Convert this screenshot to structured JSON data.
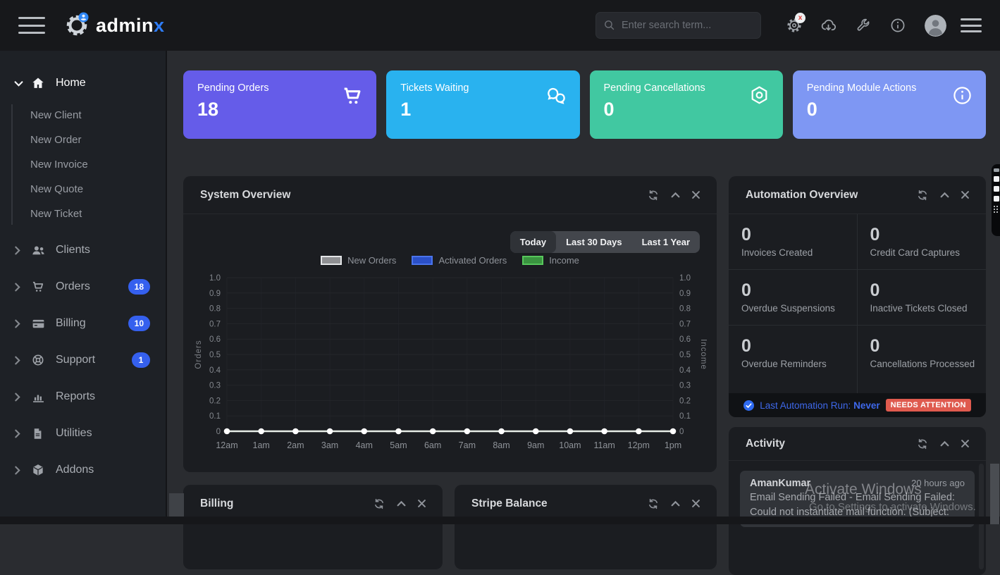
{
  "navbar": {
    "logo": {
      "primary": "admin",
      "accent": "x"
    },
    "search": {
      "placeholder": "Enter search term..."
    },
    "error_badge": "x"
  },
  "sidebar": {
    "home_label": "Home",
    "home_children": [
      "New Client",
      "New Order",
      "New Invoice",
      "New Quote",
      "New Ticket"
    ],
    "items": [
      {
        "label": "Clients",
        "badge": ""
      },
      {
        "label": "Orders",
        "badge": "18"
      },
      {
        "label": "Billing",
        "badge": "10"
      },
      {
        "label": "Support",
        "badge": "1"
      },
      {
        "label": "Reports",
        "badge": ""
      },
      {
        "label": "Utilities",
        "badge": ""
      },
      {
        "label": "Addons",
        "badge": ""
      }
    ]
  },
  "colors": {
    "badge_blue": "#3560ee"
  },
  "stat_cards": [
    {
      "label": "Pending Orders",
      "value": "18",
      "color": "#655ce9"
    },
    {
      "label": "Tickets Waiting",
      "value": "1",
      "color": "#29b2ef"
    },
    {
      "label": "Pending Cancellations",
      "value": "0",
      "color": "#41c8a1"
    },
    {
      "label": "Pending Module Actions",
      "value": "0",
      "color": "#7e97f3"
    }
  ],
  "system_overview": {
    "title": "System Overview",
    "ranges": [
      "Today",
      "Last 30 Days",
      "Last 1 Year"
    ],
    "active_range": "Today",
    "legend": [
      {
        "label": "New Orders",
        "fill": "#8f9093",
        "border": "#e4e6e8"
      },
      {
        "label": "Activated Orders",
        "fill": "#2b50c8",
        "border": "#4a74ec"
      },
      {
        "label": "Income",
        "fill": "#3a9440",
        "border": "#57c75c"
      }
    ],
    "line_color": "#e7ede7",
    "marker_color": "#ffffff"
  },
  "chart_data": {
    "type": "line",
    "title": "System Overview",
    "x": [
      "12am",
      "1am",
      "2am",
      "3am",
      "4am",
      "5am",
      "6am",
      "7am",
      "8am",
      "9am",
      "10am",
      "11am",
      "12pm",
      "1pm"
    ],
    "series": [
      {
        "name": "New Orders",
        "axis": "left",
        "values": [
          0,
          0,
          0,
          0,
          0,
          0,
          0,
          0,
          0,
          0,
          0,
          0,
          0,
          0
        ]
      },
      {
        "name": "Activated Orders",
        "axis": "left",
        "values": [
          0,
          0,
          0,
          0,
          0,
          0,
          0,
          0,
          0,
          0,
          0,
          0,
          0,
          0
        ]
      },
      {
        "name": "Income",
        "axis": "right",
        "values": [
          0,
          0,
          0,
          0,
          0,
          0,
          0,
          0,
          0,
          0,
          0,
          0,
          0,
          0
        ]
      }
    ],
    "ylabel_left": "Orders",
    "ylabel_right": "Income",
    "ylim": [
      0,
      1.0
    ],
    "ytick_step": 0.1,
    "grid": true,
    "legend_position": "top"
  },
  "automation": {
    "title": "Automation Overview",
    "stats": [
      {
        "value": "0",
        "label": "Invoices Created"
      },
      {
        "value": "0",
        "label": "Credit Card Captures"
      },
      {
        "value": "0",
        "label": "Overdue Suspensions"
      },
      {
        "value": "0",
        "label": "Inactive Tickets Closed"
      },
      {
        "value": "0",
        "label": "Overdue Reminders"
      },
      {
        "value": "0",
        "label": "Cancellations Processed"
      }
    ],
    "footer": {
      "prefix": "Last Automation Run:",
      "value": "Never",
      "badge": "NEEDS ATTENTION",
      "badge_color": "#df5a4e",
      "text_color": "#3e68ea"
    }
  },
  "activity": {
    "title": "Activity",
    "items": [
      {
        "name": "AmanKumar",
        "time": "20 hours ago",
        "text": "Email Sending Failed - Email Sending Failed: Could not instantiate mail function. (Subject:"
      }
    ]
  },
  "billing_panel": {
    "title": "Billing"
  },
  "stripe_panel": {
    "title": "Stripe Balance"
  },
  "watermark": {
    "line1": "Activate Windows",
    "line2": "Go to Settings to activate Windows."
  }
}
